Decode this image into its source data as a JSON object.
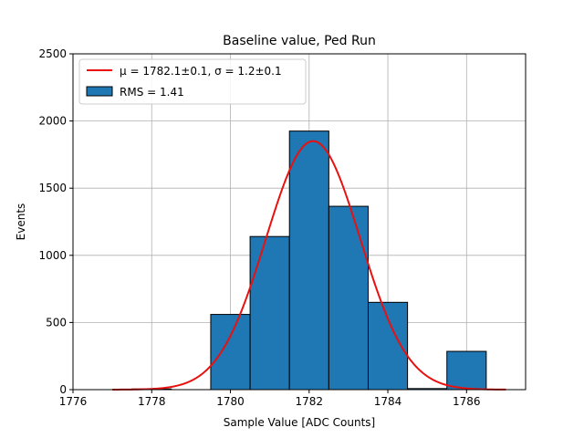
{
  "chart_data": {
    "type": "bar",
    "title": "Baseline value, Ped Run",
    "xlabel": "Sample Value [ADC Counts]",
    "ylabel": "Events",
    "xlim": [
      1776,
      1787.5
    ],
    "ylim": [
      0,
      2500
    ],
    "xticks": [
      1776,
      1778,
      1780,
      1782,
      1784,
      1786
    ],
    "yticks": [
      0,
      500,
      1000,
      1500,
      2000,
      2500
    ],
    "grid": true,
    "legend_position": "top-left",
    "colors": {
      "bar": "#1f77b4",
      "edge": "#000000",
      "fit": "#e8110f",
      "grid": "#b0b0b0"
    },
    "histogram": {
      "name": "RMS = 1.41",
      "bin_edges": [
        1776.5,
        1777.5,
        1778.5,
        1779.5,
        1780.5,
        1781.5,
        1782.5,
        1783.5,
        1784.5,
        1785.5,
        1786.5
      ],
      "counts": [
        0,
        5,
        0,
        560,
        1140,
        1925,
        1365,
        650,
        8,
        285
      ]
    },
    "fit": {
      "name": "μ = 1782.1±0.1, σ = 1.2±0.1",
      "mu": 1782.1,
      "sigma": 1.2,
      "amplitude": 1850,
      "x_range": [
        1777,
        1787
      ]
    }
  }
}
